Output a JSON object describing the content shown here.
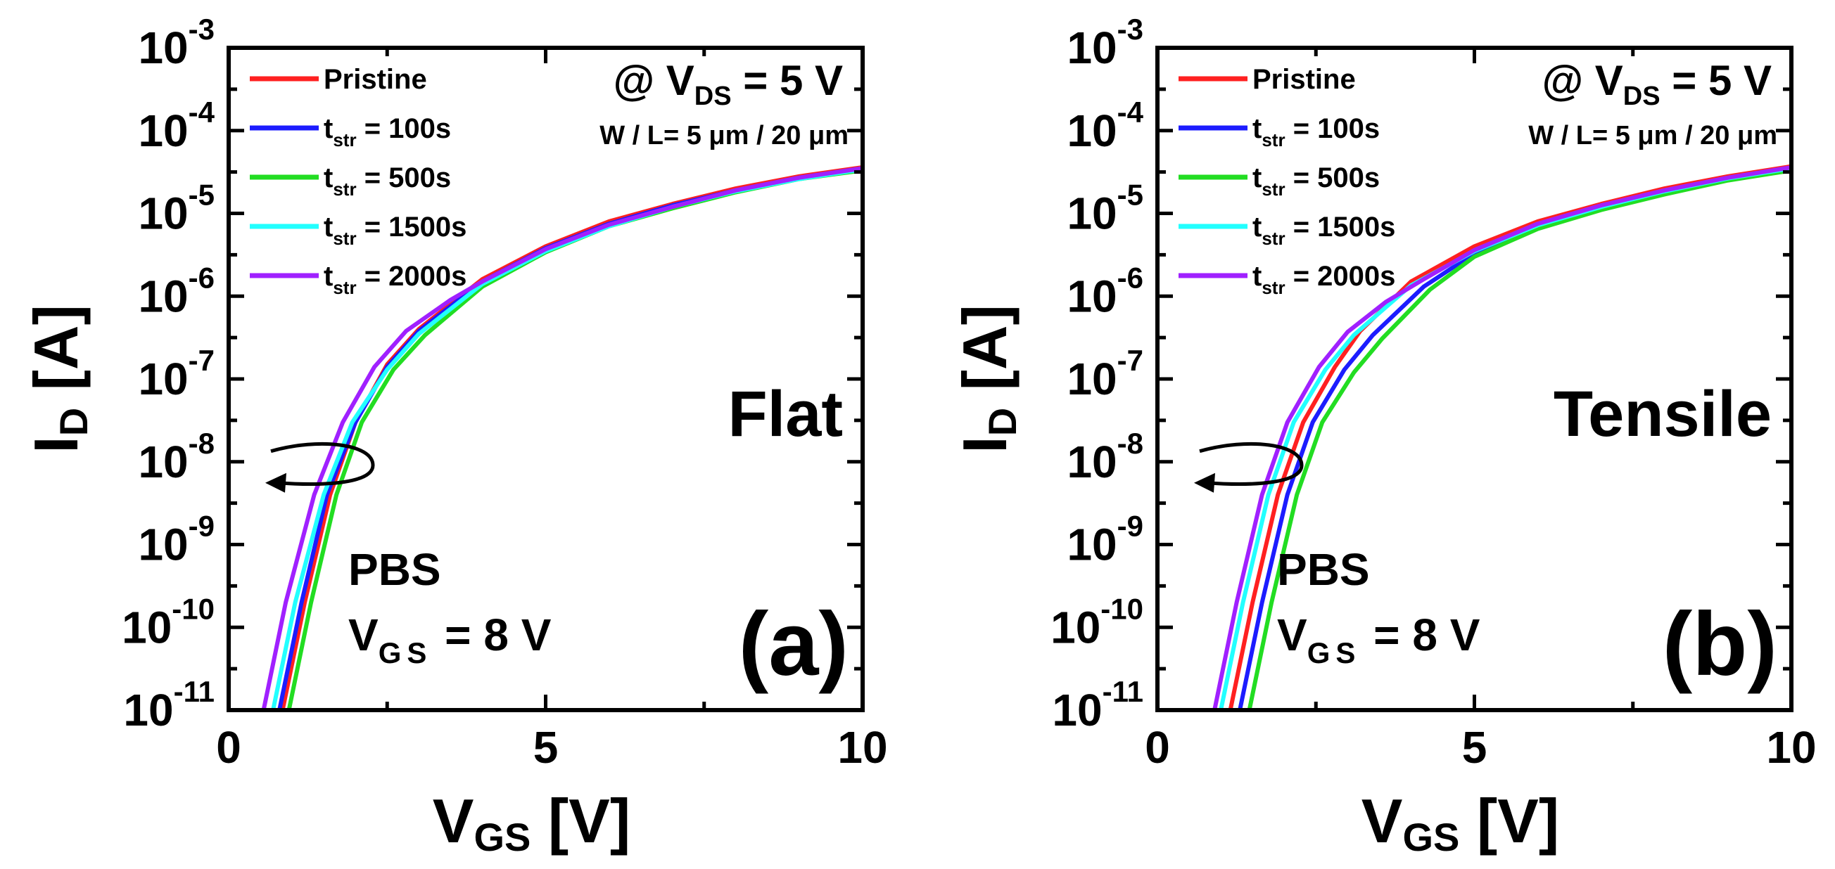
{
  "colors": {
    "Pristine": "#ff2020",
    "t100": "#1c1cff",
    "t500": "#22dd22",
    "t1500": "#22ffff",
    "t2000": "#a020ff",
    "axis": "#000000",
    "background": "#ffffff"
  },
  "chart_data": [
    {
      "type": "line",
      "panel_label": "(a)",
      "condition": "Flat",
      "yscale": "log",
      "xlabel": {
        "main": "V",
        "sub": "GS",
        "unit": " [V]"
      },
      "ylabel": {
        "main": "I",
        "sub": "D",
        "unit": " [A]"
      },
      "xlim": [
        0,
        10
      ],
      "ylim": [
        1e-11,
        0.001
      ],
      "x_ticks": [
        "0",
        "5",
        "10"
      ],
      "y_ticks": [
        {
          "base": "10",
          "exp": "-3"
        },
        {
          "base": "10",
          "exp": "-4"
        },
        {
          "base": "10",
          "exp": "-5"
        },
        {
          "base": "10",
          "exp": "-6"
        },
        {
          "base": "10",
          "exp": "-7"
        },
        {
          "base": "10",
          "exp": "-8"
        },
        {
          "base": "10",
          "exp": "-9"
        },
        {
          "base": "10",
          "exp": "-10"
        },
        {
          "base": "10",
          "exp": "-11"
        }
      ],
      "annotations": {
        "bias": {
          "prefix": "@ V",
          "sub": "DS",
          "suffix": " = 5 V"
        },
        "geometry": "W / L= 5 μm / 20 μm",
        "stress": "PBS",
        "stress_bias": {
          "main": "V",
          "sub": "GS",
          "suffix": " = 8 V"
        }
      },
      "series": [
        {
          "name": "Pristine",
          "legend": {
            "main": "Pristine",
            "sub": "",
            "suffix": ""
          },
          "color_key": "Pristine",
          "x": [
            0.85,
            1.2,
            1.6,
            2.0,
            2.5,
            3.0,
            4.0,
            5.0,
            6.0,
            7.0,
            8.0,
            9.0,
            10.0
          ],
          "y": [
            1e-11,
            2e-10,
            4e-09,
            3e-08,
            1.5e-07,
            4e-07,
            1.6e-06,
            4e-06,
            8e-06,
            1.3e-05,
            2e-05,
            2.8e-05,
            3.6e-05
          ]
        },
        {
          "name": "t_str = 100s",
          "legend": {
            "main": "t",
            "sub": "str",
            "suffix": " = 100s"
          },
          "color_key": "t100",
          "x": [
            0.8,
            1.15,
            1.55,
            2.0,
            2.5,
            3.0,
            4.0,
            5.0,
            6.0,
            7.0,
            8.0,
            9.0,
            10.0
          ],
          "y": [
            1e-11,
            2e-10,
            4e-09,
            3e-08,
            1.4e-07,
            3.8e-07,
            1.5e-06,
            3.8e-06,
            7.5e-06,
            1.25e-05,
            1.9e-05,
            2.7e-05,
            3.5e-05
          ]
        },
        {
          "name": "t_str = 500s",
          "legend": {
            "main": "t",
            "sub": "str",
            "suffix": " = 500s"
          },
          "color_key": "t500",
          "x": [
            0.95,
            1.3,
            1.7,
            2.1,
            2.6,
            3.1,
            4.0,
            5.0,
            6.0,
            7.0,
            8.0,
            9.0,
            10.0
          ],
          "y": [
            1e-11,
            2e-10,
            4e-09,
            3e-08,
            1.3e-07,
            3.4e-07,
            1.3e-06,
            3.4e-06,
            7e-06,
            1.15e-05,
            1.8e-05,
            2.6e-05,
            3.3e-05
          ]
        },
        {
          "name": "t_str = 1500s",
          "legend": {
            "main": "t",
            "sub": "str",
            "suffix": " = 1500s"
          },
          "color_key": "t1500",
          "x": [
            0.7,
            1.05,
            1.5,
            1.95,
            2.5,
            3.0,
            4.0,
            5.0,
            6.0,
            7.0,
            8.0,
            9.0,
            10.0
          ],
          "y": [
            1e-11,
            2e-10,
            4e-09,
            3e-08,
            1.3e-07,
            3.5e-07,
            1.4e-06,
            3.5e-06,
            7e-06,
            1.2e-05,
            1.85e-05,
            2.6e-05,
            3.4e-05
          ]
        },
        {
          "name": "t_str = 2000s",
          "legend": {
            "main": "t",
            "sub": "str",
            "suffix": " = 2000s"
          },
          "color_key": "t2000",
          "x": [
            0.55,
            0.9,
            1.35,
            1.8,
            2.3,
            2.8,
            3.5,
            4.0,
            5.0,
            6.0,
            7.0,
            8.0,
            9.0,
            10.0
          ],
          "y": [
            1e-11,
            2e-10,
            4e-09,
            3e-08,
            1.4e-07,
            3.8e-07,
            9e-07,
            1.5e-06,
            3.7e-06,
            7.3e-06,
            1.2e-05,
            1.9e-05,
            2.7e-05,
            3.5e-05
          ]
        }
      ]
    },
    {
      "type": "line",
      "panel_label": "(b)",
      "condition": "Tensile",
      "yscale": "log",
      "xlabel": {
        "main": "V",
        "sub": "GS",
        "unit": " [V]"
      },
      "ylabel": {
        "main": "I",
        "sub": "D",
        "unit": " [A]"
      },
      "xlim": [
        0,
        10
      ],
      "ylim": [
        1e-11,
        0.001
      ],
      "x_ticks": [
        "0",
        "5",
        "10"
      ],
      "y_ticks": [
        {
          "base": "10",
          "exp": "-3"
        },
        {
          "base": "10",
          "exp": "-4"
        },
        {
          "base": "10",
          "exp": "-5"
        },
        {
          "base": "10",
          "exp": "-6"
        },
        {
          "base": "10",
          "exp": "-7"
        },
        {
          "base": "10",
          "exp": "-8"
        },
        {
          "base": "10",
          "exp": "-9"
        },
        {
          "base": "10",
          "exp": "-10"
        },
        {
          "base": "10",
          "exp": "-11"
        }
      ],
      "annotations": {
        "bias": {
          "prefix": "@ V",
          "sub": "DS",
          "suffix": " = 5 V"
        },
        "geometry": "W / L= 5 μm / 20 μm",
        "stress": "PBS",
        "stress_bias": {
          "main": "V",
          "sub": "GS",
          "suffix": " = 8 V"
        }
      },
      "series": [
        {
          "name": "Pristine",
          "legend": {
            "main": "Pristine",
            "sub": "",
            "suffix": ""
          },
          "color_key": "Pristine",
          "x": [
            1.15,
            1.5,
            1.9,
            2.3,
            2.8,
            3.2,
            4.0,
            5.0,
            6.0,
            7.0,
            8.0,
            9.0,
            10.0
          ],
          "y": [
            1e-11,
            2e-10,
            4e-09,
            3e-08,
            1.4e-07,
            3.8e-07,
            1.5e-06,
            4e-06,
            8e-06,
            1.3e-05,
            2e-05,
            2.8e-05,
            3.7e-05
          ]
        },
        {
          "name": "t_str = 100s",
          "legend": {
            "main": "t",
            "sub": "str",
            "suffix": " = 100s"
          },
          "color_key": "t100",
          "x": [
            1.3,
            1.65,
            2.05,
            2.45,
            2.95,
            3.4,
            4.2,
            5.0,
            6.0,
            7.0,
            8.0,
            9.0,
            10.0
          ],
          "y": [
            1e-11,
            2e-10,
            4e-09,
            3e-08,
            1.3e-07,
            3.4e-07,
            1.3e-06,
            3.3e-06,
            7e-06,
            1.15e-05,
            1.8e-05,
            2.6e-05,
            3.4e-05
          ]
        },
        {
          "name": "t_str = 500s",
          "legend": {
            "main": "t",
            "sub": "str",
            "suffix": " = 500s"
          },
          "color_key": "t500",
          "x": [
            1.45,
            1.8,
            2.2,
            2.6,
            3.1,
            3.55,
            4.3,
            5.0,
            6.0,
            7.0,
            8.0,
            9.0,
            10.0
          ],
          "y": [
            1e-11,
            2e-10,
            4e-09,
            3e-08,
            1.2e-07,
            3.1e-07,
            1.2e-06,
            3e-06,
            6.5e-06,
            1.1e-05,
            1.7e-05,
            2.5e-05,
            3.3e-05
          ]
        },
        {
          "name": "t_str = 1500s",
          "legend": {
            "main": "t",
            "sub": "str",
            "suffix": " = 1500s"
          },
          "color_key": "t1500",
          "x": [
            1.0,
            1.35,
            1.75,
            2.15,
            2.65,
            3.1,
            4.0,
            5.0,
            6.0,
            7.0,
            8.0,
            9.0,
            10.0
          ],
          "y": [
            1e-11,
            2e-10,
            4e-09,
            3e-08,
            1.3e-07,
            3.4e-07,
            1.35e-06,
            3.5e-06,
            7.2e-06,
            1.2e-05,
            1.85e-05,
            2.65e-05,
            3.5e-05
          ]
        },
        {
          "name": "t_str = 2000s",
          "legend": {
            "main": "t",
            "sub": "str",
            "suffix": " = 2000s"
          },
          "color_key": "t2000",
          "x": [
            0.9,
            1.25,
            1.65,
            2.05,
            2.55,
            3.0,
            3.6,
            4.2,
            5.0,
            6.0,
            7.0,
            8.0,
            9.0,
            10.0
          ],
          "y": [
            1e-11,
            2e-10,
            4e-09,
            3e-08,
            1.4e-07,
            3.7e-07,
            8.5e-07,
            1.6e-06,
            3.6e-06,
            7.5e-06,
            1.25e-05,
            1.9e-05,
            2.7e-05,
            3.6e-05
          ]
        }
      ]
    }
  ]
}
